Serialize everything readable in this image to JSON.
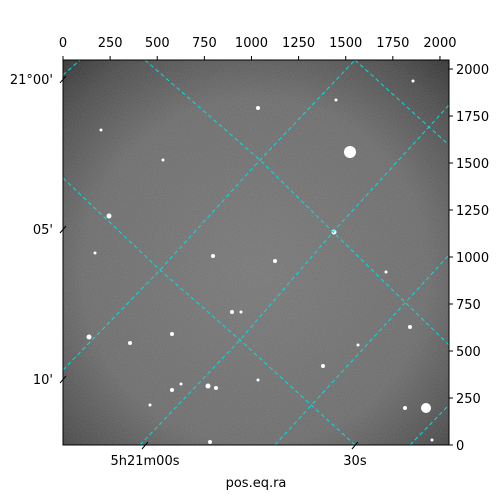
{
  "chart_data": {
    "type": "image",
    "xlabel": "pos.eq.ra",
    "xlim": [
      0,
      2048
    ],
    "ylim": [
      0,
      2048
    ],
    "xticks": [
      0,
      250,
      500,
      750,
      1000,
      1250,
      1500,
      1750,
      2000
    ],
    "yticks": [
      0,
      250,
      500,
      750,
      1000,
      1250,
      1500,
      1750,
      2000
    ],
    "ra_ticks": [
      {
        "value": 435,
        "label": "5h21m00s"
      },
      {
        "value": 1549,
        "label": "30s"
      }
    ],
    "dec_ticks": [
      {
        "value": 1947,
        "label": "21°00'"
      },
      {
        "value": 1149,
        "label": "05'"
      },
      {
        "value": 351,
        "label": "10'"
      }
    ],
    "grid_color": "#00e0e0"
  }
}
